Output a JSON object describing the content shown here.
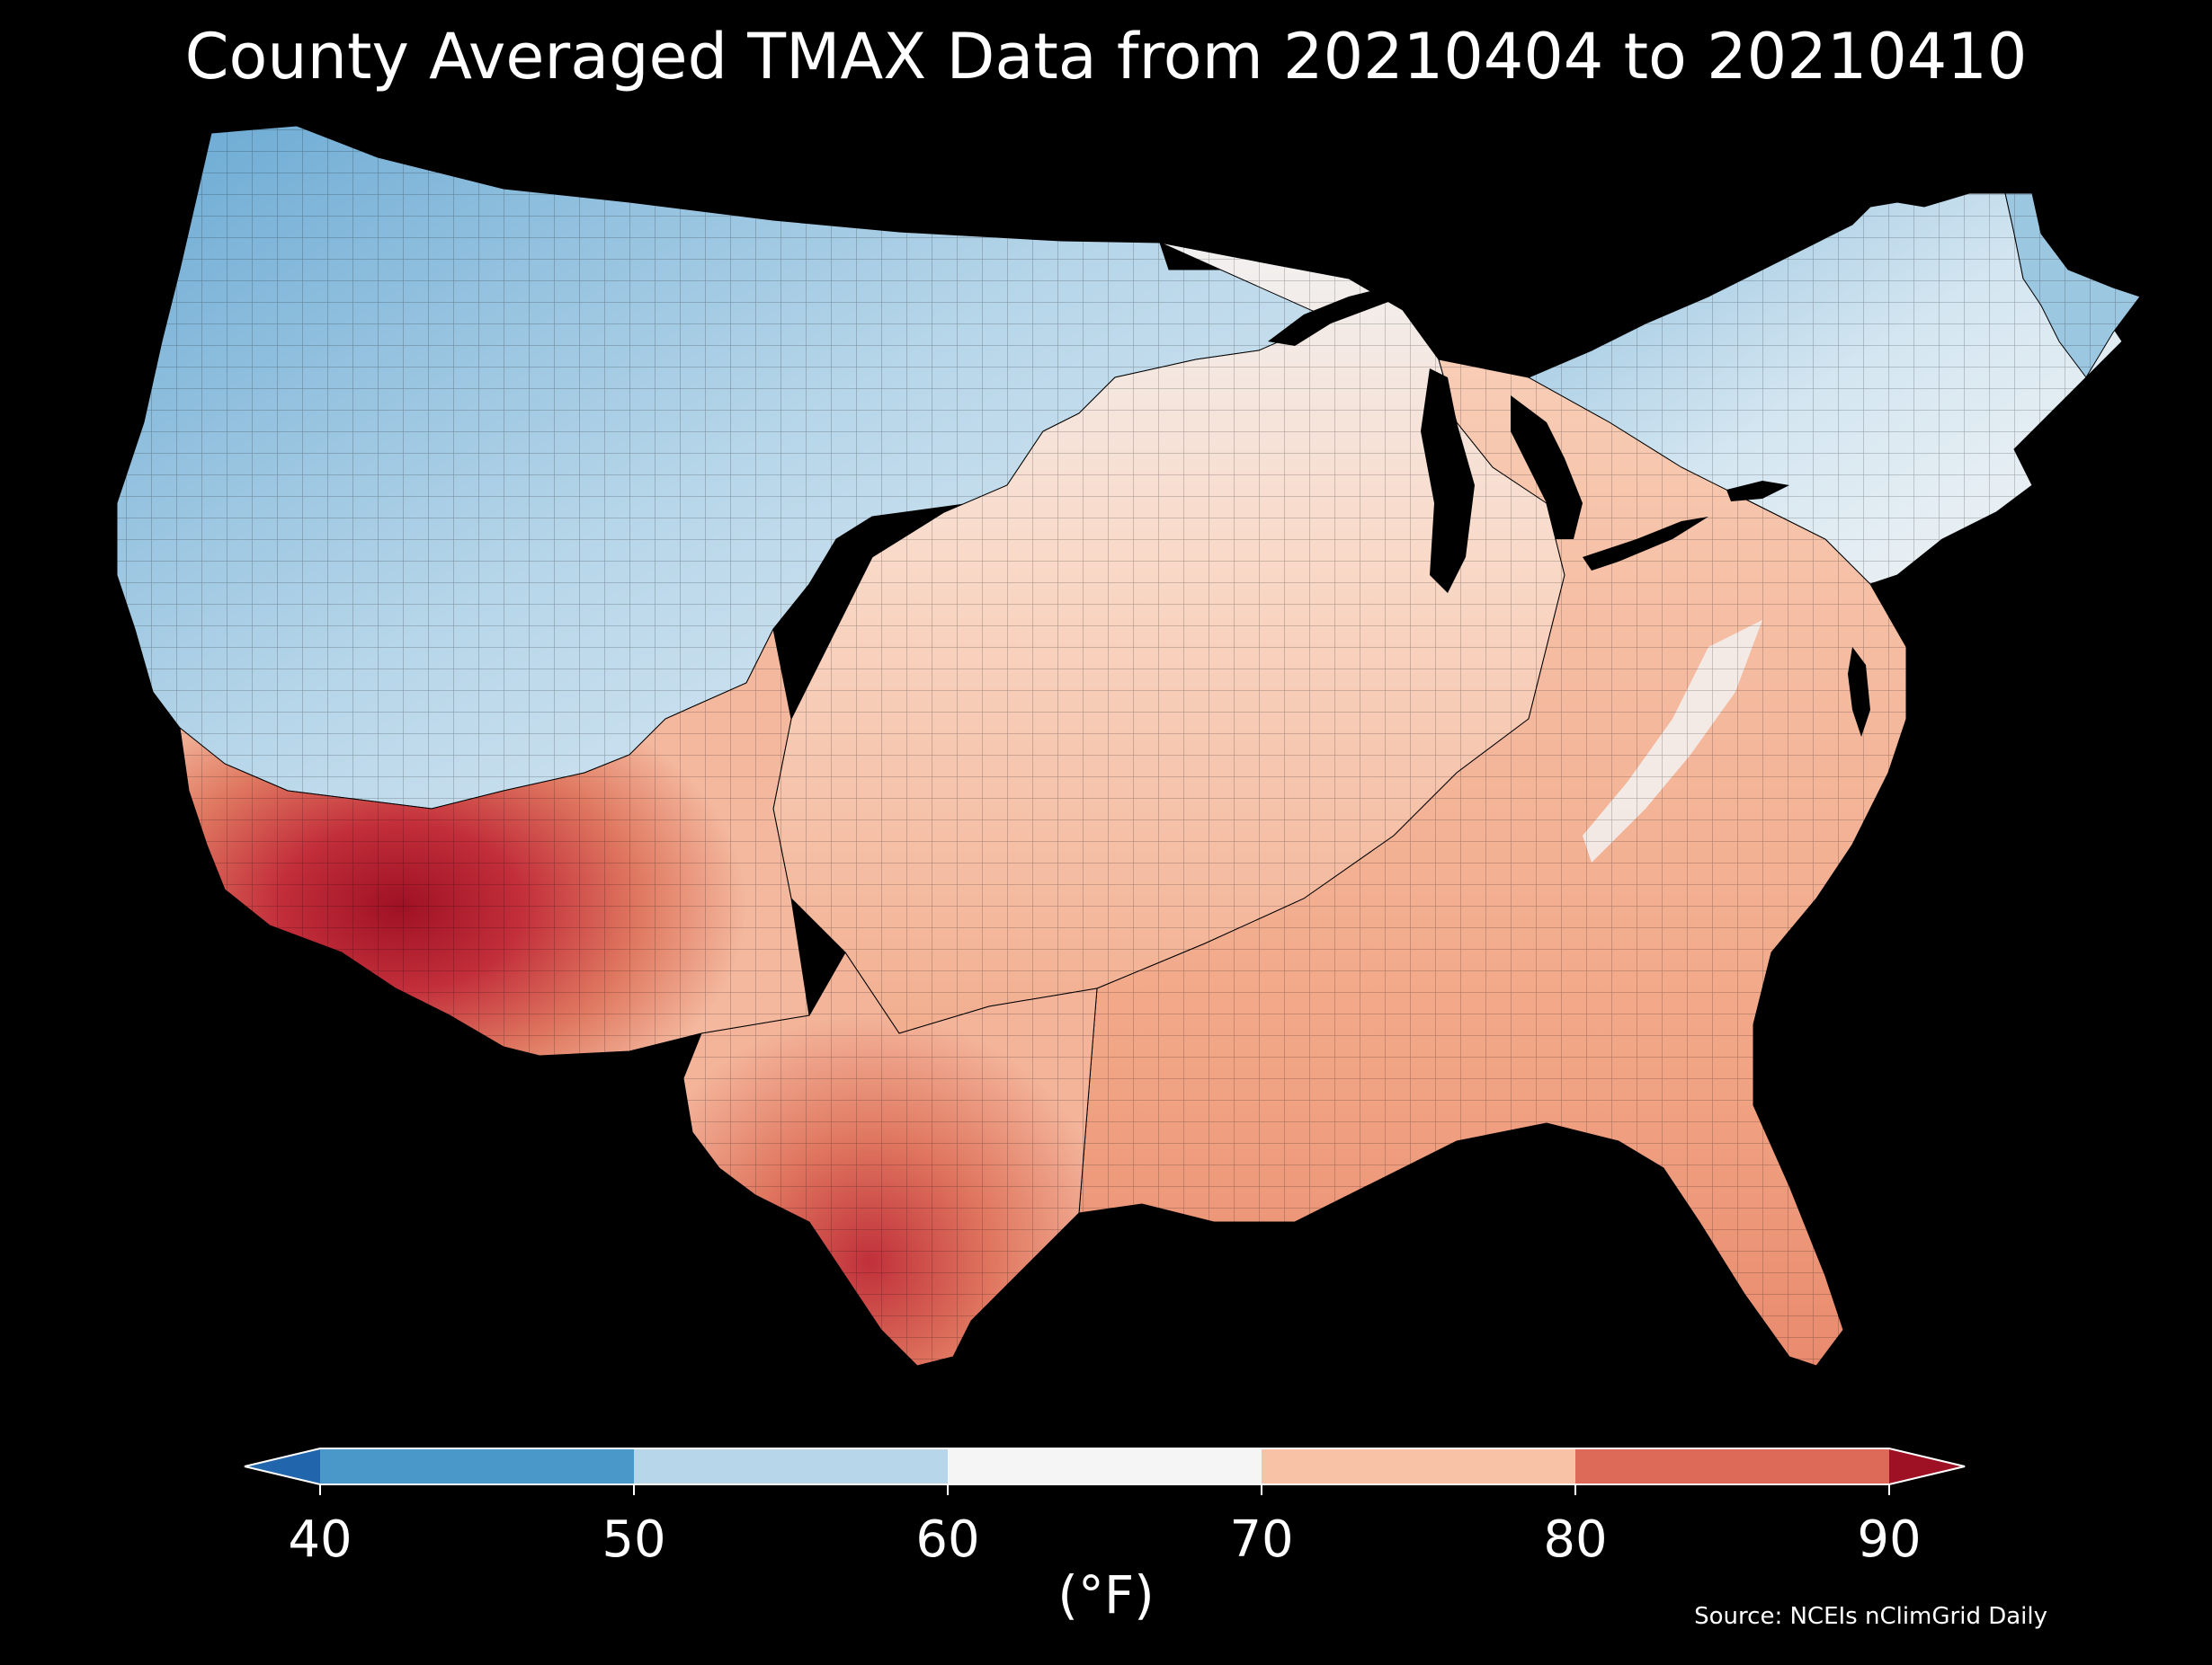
{
  "title": "County Averaged TMAX Data from 20210404 to 20210410",
  "source": "Source: NCEIs nClimGrid Daily",
  "colorbar": {
    "unit": "(°F)",
    "ticks": [
      40,
      50,
      60,
      70,
      80,
      90
    ],
    "tick_labels": [
      "40",
      "50",
      "60",
      "70",
      "80",
      "90"
    ],
    "extend": "both",
    "under_color": "#2166ac",
    "over_color": "#9e1124",
    "bins": [
      {
        "min": 40,
        "max": 50,
        "color": "#4a98c9"
      },
      {
        "min": 50,
        "max": 60,
        "color": "#b7d6e9"
      },
      {
        "min": 60,
        "max": 70,
        "color": "#f5f5f5"
      },
      {
        "min": 70,
        "max": 80,
        "color": "#f8c2a6"
      },
      {
        "min": 80,
        "max": 90,
        "color": "#dd6a58"
      }
    ]
  },
  "map": {
    "region": "Contiguous United States",
    "variable": "TMAX",
    "background": "#000000",
    "border_color": "#000000"
  }
}
